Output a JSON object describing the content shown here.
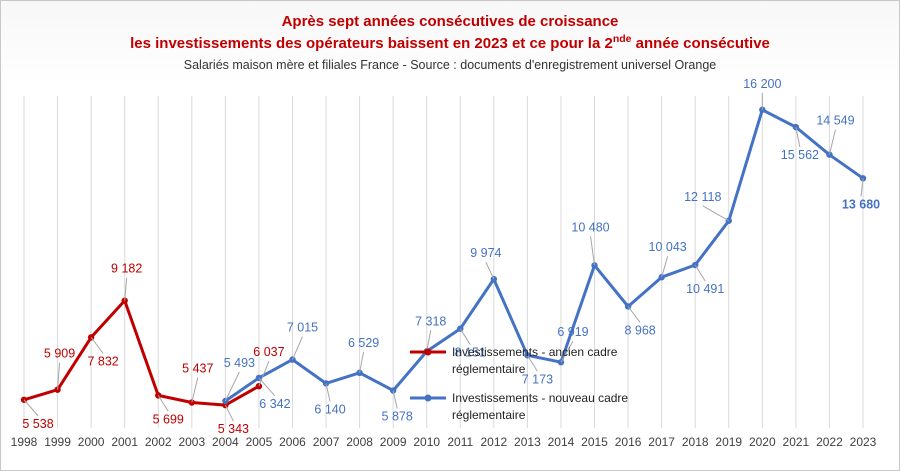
{
  "title": {
    "line1": "Après sept années consécutives de croissance",
    "line2_pre": "les investissements des opérateurs baissent en 2023 et ce pour la 2",
    "line2_sup": "nde",
    "line2_post": " année consécutive"
  },
  "subtitle": "Salariés maison mère et filiales France - Source : documents d'enregistrement universel Orange",
  "legend": [
    {
      "line1": "Investissements - ancien cadre",
      "line2": "réglementaire"
    },
    {
      "line1": "Investissements - nouveau cadre",
      "line2": "réglementaire"
    }
  ],
  "chart_data": {
    "type": "line",
    "x": [
      1998,
      1999,
      2000,
      2001,
      2002,
      2003,
      2004,
      2005,
      2006,
      2007,
      2008,
      2009,
      2010,
      2011,
      2012,
      2013,
      2014,
      2015,
      2016,
      2017,
      2018,
      2019,
      2020,
      2021,
      2022,
      2023
    ],
    "ylim": [
      4500,
      17000
    ],
    "colors": {
      "ancien": "#c00000",
      "nouveau": "#4472c4"
    },
    "series": [
      {
        "name": "Investissements - ancien cadre réglementaire",
        "key": "ancien",
        "x": [
          1998,
          1999,
          2000,
          2001,
          2002,
          2003,
          2004,
          2005
        ],
        "values": [
          5538,
          5909,
          7832,
          9182,
          5699,
          5437,
          5343,
          6037
        ],
        "labels": [
          "5 538",
          "5 909",
          "7 832",
          "9 182",
          "5 699",
          "5 437",
          "5 343",
          "6 037"
        ]
      },
      {
        "name": "Investissements - nouveau cadre réglementaire",
        "key": "nouveau",
        "x": [
          2004,
          2005,
          2006,
          2007,
          2008,
          2009,
          2010,
          2011,
          2012,
          2013,
          2014,
          2015,
          2016,
          2017,
          2018,
          2019,
          2020,
          2021,
          2022,
          2023
        ],
        "values": [
          5493,
          6342,
          7015,
          6140,
          6529,
          5878,
          7318,
          8151,
          9974,
          7173,
          6919,
          10480,
          8968,
          10043,
          10491,
          12118,
          16200,
          15562,
          14549,
          13680
        ],
        "labels": [
          "5 493",
          "6 342",
          "7 015",
          "6 140",
          "6 529",
          "5 878",
          "7 318",
          "8 151",
          "9 974",
          "7 173",
          "6 919",
          "10 480",
          "8 968",
          "10 043",
          "10 491",
          "12 118",
          "16 200",
          "15 562",
          "14 549",
          "13 680"
        ]
      }
    ]
  }
}
